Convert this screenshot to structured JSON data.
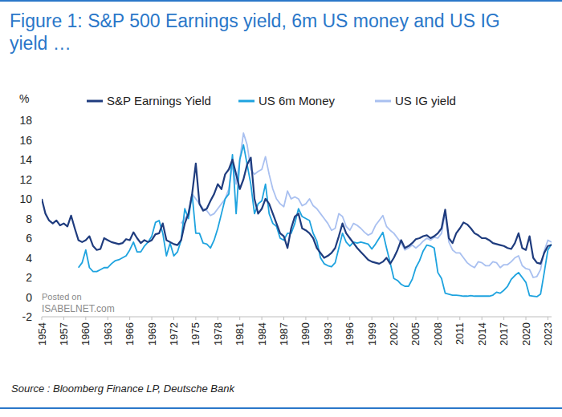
{
  "chart_data": {
    "type": "line",
    "title": "Figure 1: S&P 500 Earnings yield, 6m US money and US IG yield …",
    "y_label": "%",
    "source": "Source : Bloomberg Finance LP, Deutsche Bank",
    "annotations": [
      "Posted on",
      "ISABELNET.com"
    ],
    "legend": "top",
    "grid": false,
    "xlim": [
      1954,
      2023.5
    ],
    "xticks": [
      1954,
      1957,
      1960,
      1963,
      1966,
      1969,
      1972,
      1975,
      1978,
      1981,
      1984,
      1987,
      1990,
      1993,
      1996,
      1999,
      2002,
      2005,
      2008,
      2011,
      2014,
      2017,
      2020,
      2023
    ],
    "ylim": [
      -2,
      18
    ],
    "yticks": [
      -2,
      0,
      2,
      4,
      6,
      8,
      10,
      12,
      14,
      16,
      18
    ],
    "x": [
      1954,
      1954.5,
      1955,
      1955.5,
      1956,
      1956.5,
      1957,
      1957.5,
      1958,
      1958.5,
      1959,
      1959.5,
      1960,
      1960.5,
      1961,
      1961.5,
      1962,
      1962.5,
      1963,
      1963.5,
      1964,
      1964.5,
      1965,
      1965.5,
      1966,
      1966.5,
      1967,
      1967.5,
      1968,
      1968.5,
      1969,
      1969.5,
      1970,
      1970.5,
      1971,
      1971.5,
      1972,
      1972.5,
      1973,
      1973.5,
      1974,
      1974.5,
      1975,
      1975.5,
      1976,
      1976.5,
      1977,
      1977.5,
      1978,
      1978.5,
      1979,
      1979.5,
      1980,
      1980.5,
      1981,
      1981.5,
      1982,
      1982.5,
      1983,
      1983.5,
      1984,
      1984.5,
      1985,
      1985.5,
      1986,
      1986.5,
      1987,
      1987.5,
      1988,
      1988.5,
      1989,
      1989.5,
      1990,
      1990.5,
      1991,
      1991.5,
      1992,
      1992.5,
      1993,
      1993.5,
      1994,
      1994.5,
      1995,
      1995.5,
      1996,
      1996.5,
      1997,
      1997.5,
      1998,
      1998.5,
      1999,
      1999.5,
      2000,
      2000.5,
      2001,
      2001.5,
      2002,
      2002.5,
      2003,
      2003.5,
      2004,
      2004.5,
      2005,
      2005.5,
      2006,
      2006.5,
      2007,
      2007.5,
      2008,
      2008.5,
      2009,
      2009.5,
      2010,
      2010.5,
      2011,
      2011.5,
      2012,
      2012.5,
      2013,
      2013.5,
      2014,
      2014.5,
      2015,
      2015.5,
      2016,
      2016.5,
      2017,
      2017.5,
      2018,
      2018.5,
      2019,
      2019.5,
      2020,
      2020.5,
      2021,
      2021.5,
      2022,
      2022.5,
      2023,
      2023.5
    ],
    "series": [
      {
        "name": "S&P Earnings Yield",
        "color": "#1f3c7e",
        "values": [
          10.0,
          8.5,
          7.8,
          7.5,
          7.8,
          7.3,
          7.5,
          7.2,
          8.3,
          7.0,
          5.8,
          5.6,
          5.8,
          6.2,
          5.2,
          4.8,
          4.9,
          6.0,
          5.8,
          5.6,
          5.5,
          5.4,
          5.5,
          5.9,
          5.8,
          6.6,
          6.0,
          5.5,
          5.8,
          5.6,
          5.8,
          6.4,
          6.5,
          7.5,
          5.8,
          5.6,
          5.4,
          5.3,
          5.8,
          7.5,
          8.5,
          10.5,
          13.6,
          9.5,
          8.8,
          9.0,
          9.8,
          10.5,
          11.5,
          11.0,
          12.5,
          13.0,
          14.0,
          12.5,
          11.0,
          12.0,
          13.5,
          14.2,
          10.0,
          8.5,
          9.0,
          10.0,
          9.5,
          8.5,
          7.5,
          6.5,
          6.2,
          5.0,
          7.0,
          8.2,
          8.5,
          7.0,
          6.8,
          6.5,
          6.0,
          5.0,
          4.5,
          4.0,
          4.2,
          4.5,
          5.0,
          6.2,
          7.5,
          6.5,
          6.0,
          5.5,
          5.0,
          4.6,
          4.2,
          3.8,
          3.6,
          3.5,
          3.4,
          3.6,
          4.0,
          3.4,
          4.0,
          4.8,
          5.8,
          5.0,
          5.2,
          5.5,
          5.9,
          6.0,
          6.2,
          6.3,
          6.0,
          6.2,
          6.5,
          7.0,
          8.9,
          6.0,
          5.5,
          6.5,
          7.0,
          7.6,
          7.4,
          7.0,
          6.5,
          6.3,
          6.0,
          6.0,
          5.8,
          5.5,
          5.4,
          5.3,
          5.2,
          5.0,
          4.9,
          5.5,
          6.5,
          5.0,
          4.8,
          6.2,
          4.0,
          3.5,
          3.4,
          4.5,
          5.2,
          5.3
        ]
      },
      {
        "name": "US 6m Money",
        "color": "#1ea3df",
        "values": [
          null,
          null,
          null,
          null,
          null,
          null,
          null,
          null,
          null,
          null,
          3.0,
          3.5,
          4.8,
          3.0,
          2.6,
          2.6,
          2.8,
          3.0,
          3.0,
          3.4,
          3.7,
          3.8,
          4.0,
          4.2,
          4.8,
          5.6,
          4.6,
          4.6,
          5.2,
          5.6,
          6.2,
          7.6,
          7.8,
          6.5,
          4.2,
          5.5,
          4.2,
          4.6,
          5.8,
          9.0,
          8.0,
          10.5,
          6.5,
          6.5,
          5.5,
          5.4,
          5.0,
          5.8,
          7.0,
          8.5,
          10.0,
          10.5,
          14.5,
          8.5,
          14.0,
          15.5,
          13.5,
          11.5,
          8.5,
          9.5,
          9.8,
          11.5,
          8.5,
          7.5,
          7.2,
          6.0,
          5.8,
          6.5,
          6.5,
          7.5,
          9.0,
          8.2,
          8.0,
          7.8,
          6.5,
          5.7,
          4.0,
          3.4,
          3.2,
          3.1,
          3.5,
          5.0,
          6.5,
          5.6,
          5.2,
          5.6,
          5.5,
          5.6,
          5.5,
          5.4,
          4.9,
          5.4,
          6.0,
          6.6,
          5.0,
          3.5,
          1.9,
          1.7,
          1.3,
          1.1,
          1.1,
          1.8,
          3.0,
          3.7,
          4.7,
          5.3,
          5.2,
          5.0,
          2.5,
          1.9,
          0.4,
          0.3,
          0.2,
          0.2,
          0.15,
          0.1,
          0.1,
          0.15,
          0.1,
          0.1,
          0.1,
          0.1,
          0.1,
          0.2,
          0.5,
          0.4,
          0.7,
          1.1,
          1.8,
          2.2,
          2.5,
          2.0,
          1.5,
          0.15,
          0.1,
          0.05,
          0.3,
          2.5,
          4.8,
          5.4
        ]
      },
      {
        "name": "US IG yield",
        "color": "#a9c0f0",
        "values": [
          null,
          null,
          null,
          null,
          null,
          null,
          null,
          null,
          null,
          null,
          null,
          null,
          null,
          null,
          null,
          null,
          null,
          null,
          null,
          null,
          null,
          null,
          null,
          null,
          null,
          null,
          null,
          null,
          null,
          null,
          null,
          null,
          null,
          null,
          null,
          null,
          null,
          null,
          7.5,
          8.0,
          8.5,
          10.5,
          10.0,
          9.5,
          9.0,
          8.8,
          8.3,
          8.5,
          9.0,
          9.5,
          10.0,
          11.0,
          13.5,
          11.5,
          14.0,
          16.7,
          15.5,
          13.0,
          12.5,
          12.8,
          13.0,
          14.3,
          12.5,
          11.0,
          10.0,
          9.5,
          9.2,
          10.8,
          10.0,
          10.2,
          10.0,
          9.3,
          9.5,
          10.0,
          9.3,
          9.0,
          8.5,
          8.0,
          7.5,
          6.8,
          7.0,
          8.5,
          8.2,
          7.2,
          6.8,
          7.5,
          7.3,
          7.0,
          6.6,
          6.3,
          6.5,
          7.3,
          7.8,
          8.3,
          7.2,
          6.8,
          6.5,
          6.0,
          5.5,
          4.8,
          5.0,
          5.3,
          5.0,
          5.3,
          5.7,
          6.0,
          5.8,
          6.1,
          6.0,
          6.5,
          8.6,
          5.6,
          4.8,
          4.5,
          4.5,
          4.0,
          3.5,
          3.2,
          3.0,
          3.6,
          3.5,
          3.2,
          3.2,
          3.6,
          3.5,
          3.0,
          3.3,
          3.3,
          3.6,
          4.0,
          4.2,
          3.2,
          2.9,
          2.8,
          2.0,
          2.1,
          2.8,
          4.7,
          5.8,
          5.6
        ]
      }
    ]
  }
}
